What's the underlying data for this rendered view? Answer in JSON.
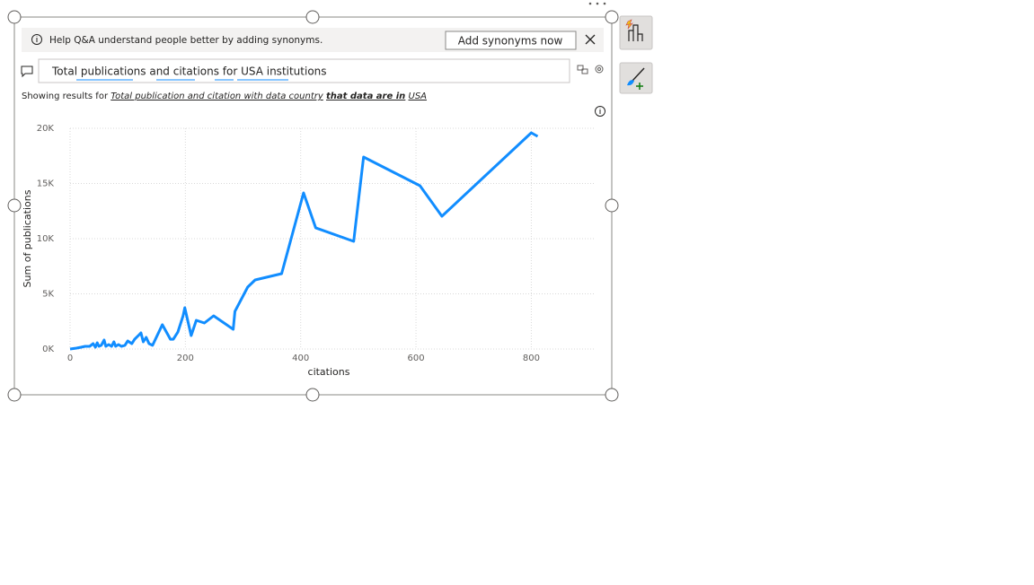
{
  "banner": {
    "text": "Help Q&A understand people better by adding synonyms.",
    "button": "Add synonyms now"
  },
  "query": "Total publications and citations for USA institutions",
  "showing": {
    "prefix": "Showing results for",
    "parts": [
      "Total publication and citation with data country",
      "that data are in",
      "USA"
    ]
  },
  "chart_data": {
    "type": "line",
    "x_label": "citations",
    "y_label": "Sum of publications",
    "color": "#118dff",
    "x": [
      0,
      11,
      19,
      26,
      34,
      40,
      44,
      47,
      50,
      54,
      59,
      62,
      67,
      72,
      76,
      79,
      84,
      89,
      95,
      100,
      107,
      112,
      120,
      123,
      127,
      132,
      137,
      143,
      160,
      174,
      179,
      187,
      196,
      199,
      210,
      219,
      233,
      249,
      283,
      286,
      308,
      321,
      367,
      405,
      426,
      492,
      509,
      607,
      645,
      800,
      811
    ],
    "values": [
      0,
      80,
      160,
      240,
      240,
      490,
      160,
      570,
      240,
      330,
      810,
      240,
      410,
      240,
      650,
      240,
      410,
      240,
      330,
      730,
      490,
      890,
      1300,
      1460,
      650,
      1060,
      490,
      330,
      2200,
      890,
      890,
      1540,
      3010,
      3740,
      1220,
      2600,
      2360,
      3010,
      1790,
      3410,
      5610,
      6260,
      6830,
      14150,
      10980,
      9760,
      17400,
      14800,
      12030,
      19590,
      19270
    ],
    "xlim": [
      0,
      910
    ],
    "xticks": [
      0,
      200,
      400,
      600,
      800
    ],
    "ylim": [
      0,
      20000
    ],
    "yticks": [
      {
        "value": 0,
        "label": "0K"
      },
      {
        "value": 5000,
        "label": "5K"
      },
      {
        "value": 10000,
        "label": "10K"
      },
      {
        "value": 15000,
        "label": "15K"
      },
      {
        "value": 20000,
        "label": "20K"
      }
    ],
    "grid": true
  }
}
